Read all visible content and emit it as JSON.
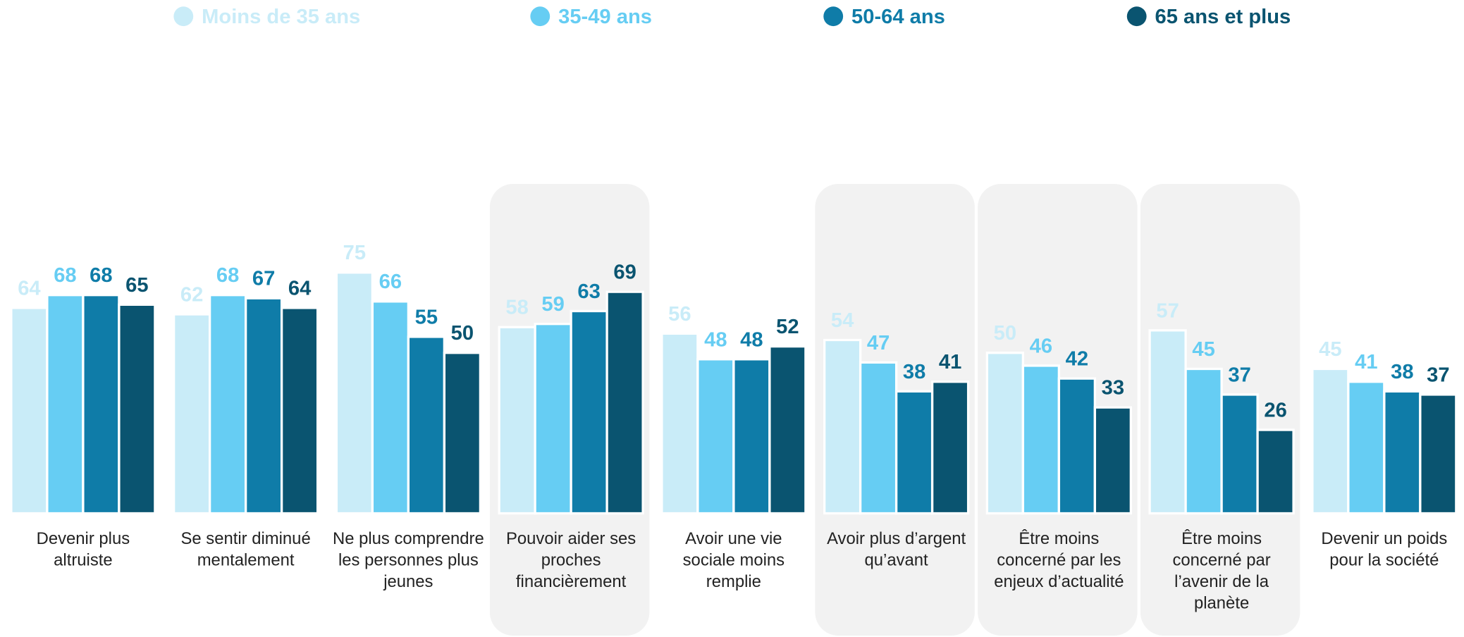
{
  "chart_data": {
    "type": "bar",
    "categories": [
      "Devenir plus altruiste",
      "Se sentir diminué mentalement",
      "Ne plus comprendre les personnes plus jeunes",
      "Pouvoir aider ses proches financièrement",
      "Avoir une vie sociale moins remplie",
      "Avoir plus d’argent qu’avant",
      "Être moins concerné par les enjeux d’actualité",
      "Être moins concerné par l’avenir de la planète",
      "Devenir un poids pour la société"
    ],
    "series": [
      {
        "name": "Moins de 35 ans",
        "color": "#c9ecf8",
        "values": [
          64,
          62,
          75,
          58,
          56,
          54,
          50,
          57,
          45
        ]
      },
      {
        "name": "35-49 ans",
        "color": "#66cdf3",
        "values": [
          68,
          68,
          66,
          59,
          48,
          47,
          46,
          45,
          41
        ]
      },
      {
        "name": "50-64 ans",
        "color": "#0f7ca8",
        "values": [
          68,
          67,
          55,
          63,
          48,
          38,
          42,
          37,
          38
        ]
      },
      {
        "name": "65 ans et plus",
        "color": "#0a5470",
        "values": [
          65,
          64,
          50,
          69,
          52,
          41,
          33,
          26,
          37
        ]
      }
    ],
    "ylim": [
      0,
      100
    ],
    "highlighted": [
      3,
      5,
      6,
      7
    ],
    "legend": "top"
  }
}
